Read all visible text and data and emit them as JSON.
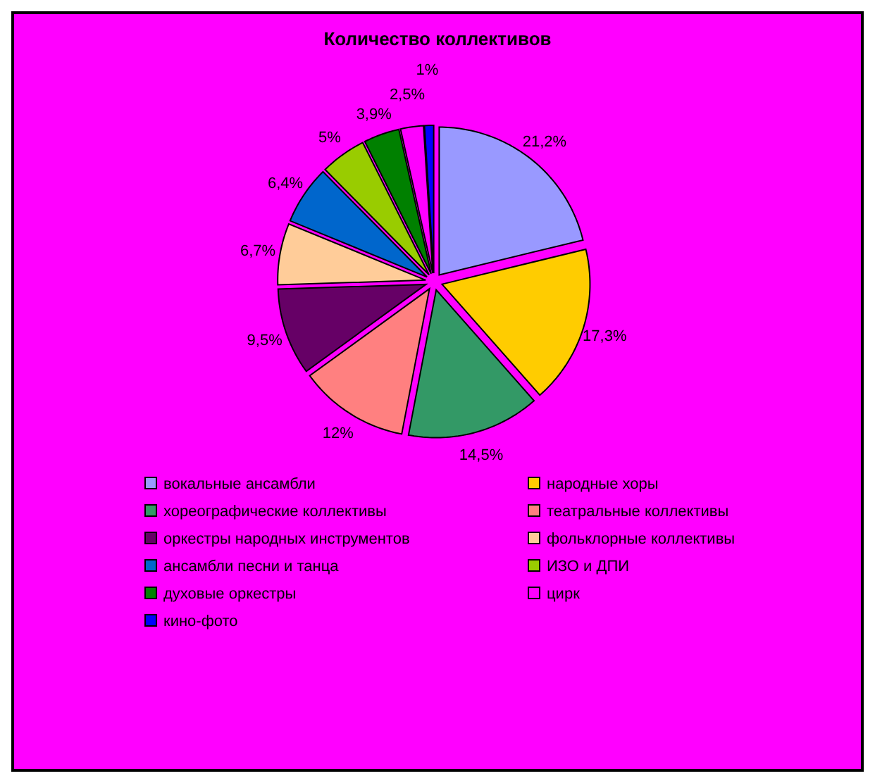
{
  "chart_data": {
    "type": "pie",
    "title": "Количество коллективов",
    "categories": [
      "вокальные ансамбли",
      "народные хоры",
      "хореографические коллективы",
      "театральные коллективы",
      "оркестры народных инструментов",
      "фольклорные коллективы",
      "ансамбли песни и танца",
      "ИЗО и ДПИ",
      "духовые оркестры",
      "цирк",
      "кино-фото"
    ],
    "values": [
      21.2,
      17.3,
      14.5,
      12,
      9.5,
      6.7,
      6.4,
      5,
      3.9,
      2.5,
      1
    ],
    "value_labels": [
      "21,2%",
      "17,3%",
      "14,5%",
      "12%",
      "9,5%",
      "6,7%",
      "6,4%",
      "5%",
      "3,9%",
      "2,5%",
      "1%"
    ],
    "colors": [
      "#9999ff",
      "#ffcc00",
      "#339966",
      "#ff8080",
      "#660066",
      "#ffcc99",
      "#0066cc",
      "#99cc00",
      "#008000",
      "#ff00ff",
      "#0000ff"
    ],
    "legend": "bottom"
  }
}
